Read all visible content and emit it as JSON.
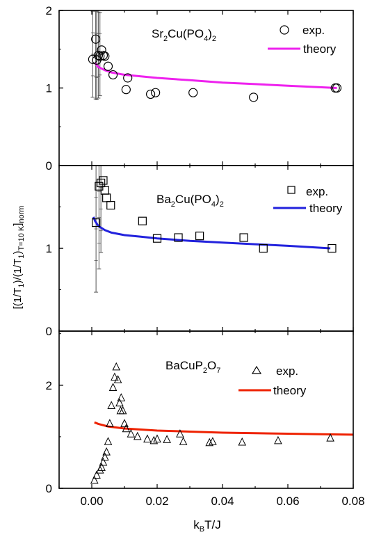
{
  "chart_data": [
    {
      "type": "scatter",
      "title_parts": [
        "Sr",
        "2",
        "Cu(PO",
        "4",
        ")",
        "2"
      ],
      "xlim": [
        -0.01,
        0.08
      ],
      "ylim": [
        0,
        2
      ],
      "y_ticks": [
        "0",
        "1",
        "2"
      ],
      "series": [
        {
          "name": "exp.",
          "marker": "circle",
          "x": [
            0.0003,
            0.0012,
            0.0015,
            0.002,
            0.0025,
            0.003,
            0.0035,
            0.004,
            0.005,
            0.0065,
            0.0105,
            0.011,
            0.018,
            0.0195,
            0.031,
            0.0495,
            0.0745,
            0.075
          ],
          "y": [
            1.37,
            1.63,
            1.36,
            1.42,
            1.41,
            1.49,
            1.42,
            1.41,
            1.28,
            1.17,
            0.98,
            1.13,
            0.92,
            0.94,
            0.94,
            0.88,
            1.0,
            1.0
          ]
        },
        {
          "name": "theory",
          "color": "#ee22ee",
          "x": [
            0.001,
            0.002,
            0.004,
            0.006,
            0.01,
            0.015,
            0.02,
            0.03,
            0.04,
            0.05,
            0.06,
            0.075
          ],
          "y": [
            1.32,
            1.27,
            1.23,
            1.2,
            1.17,
            1.15,
            1.13,
            1.1,
            1.07,
            1.05,
            1.03,
            1.0
          ]
        }
      ],
      "error_bars": {
        "x": [
          0.0003,
          0.0012,
          0.0015,
          0.002,
          0.0025
        ],
        "low": [
          0.88,
          0.86,
          0.85,
          0.87,
          0.9
        ],
        "high": [
          1.99,
          1.99,
          1.99,
          1.98,
          1.97
        ]
      }
    },
    {
      "type": "scatter",
      "title_parts": [
        "Ba",
        "2",
        "Cu(PO",
        "4",
        ")",
        "2"
      ],
      "xlim": [
        -0.01,
        0.08
      ],
      "ylim": [
        0,
        2
      ],
      "y_ticks": [
        "0",
        "1"
      ],
      "series": [
        {
          "name": "exp.",
          "marker": "square",
          "x": [
            0.0013,
            0.0022,
            0.0028,
            0.0035,
            0.004,
            0.0045,
            0.0058,
            0.0155,
            0.02,
            0.0265,
            0.033,
            0.0465,
            0.0525,
            0.0735
          ],
          "y": [
            1.31,
            1.75,
            1.79,
            1.82,
            1.7,
            1.61,
            1.52,
            1.33,
            1.12,
            1.13,
            1.15,
            1.13,
            1.0,
            1.0
          ]
        },
        {
          "name": "theory",
          "color": "#2222dd",
          "x": [
            0.0005,
            0.001,
            0.002,
            0.004,
            0.006,
            0.01,
            0.015,
            0.02,
            0.03,
            0.04,
            0.05,
            0.06,
            0.073
          ],
          "y": [
            1.38,
            1.33,
            1.27,
            1.22,
            1.19,
            1.16,
            1.14,
            1.12,
            1.09,
            1.07,
            1.05,
            1.03,
            1.0
          ]
        }
      ],
      "error_bars": {
        "x": [
          0.0013,
          0.0022,
          0.0028
        ],
        "low": [
          0.47,
          0.75,
          0.95
        ],
        "high": [
          2.0,
          2.0,
          2.0
        ]
      }
    },
    {
      "type": "scatter",
      "title_parts": [
        "BaCuP",
        "2",
        "O",
        "7"
      ],
      "xlim": [
        -0.01,
        0.08
      ],
      "ylim": [
        0,
        3.05
      ],
      "y_ticks": [
        "0",
        "2"
      ],
      "x_ticks": [
        "0.00",
        "0.02",
        "0.04",
        "0.06",
        "0.08"
      ],
      "xlabel_parts": [
        "k",
        "B",
        "T/J"
      ],
      "series": [
        {
          "name": "exp.",
          "marker": "triangle",
          "x": [
            0.0008,
            0.0015,
            0.0025,
            0.003,
            0.0035,
            0.004,
            0.0045,
            0.005,
            0.0055,
            0.006,
            0.0065,
            0.007,
            0.0075,
            0.008,
            0.0085,
            0.0088,
            0.009,
            0.0095,
            0.01,
            0.0105,
            0.012,
            0.014,
            0.017,
            0.019,
            0.02,
            0.023,
            0.027,
            0.028,
            0.036,
            0.037,
            0.046,
            0.057,
            0.073
          ],
          "y": [
            0.15,
            0.25,
            0.35,
            0.4,
            0.5,
            0.6,
            0.7,
            0.9,
            1.25,
            1.6,
            1.95,
            2.15,
            2.35,
            2.1,
            1.65,
            1.5,
            1.75,
            1.5,
            1.25,
            1.15,
            1.05,
            1.0,
            0.95,
            0.92,
            0.95,
            0.94,
            1.05,
            0.9,
            0.88,
            0.9,
            0.89,
            0.92,
            0.97
          ]
        },
        {
          "name": "theory",
          "color": "#ee2200",
          "x": [
            0.0008,
            0.002,
            0.005,
            0.01,
            0.02,
            0.03,
            0.04,
            0.05,
            0.06,
            0.07,
            0.08
          ],
          "y": [
            1.28,
            1.25,
            1.2,
            1.16,
            1.12,
            1.1,
            1.08,
            1.07,
            1.06,
            1.05,
            1.04
          ]
        }
      ]
    }
  ],
  "ylabel_parts": [
    "[(1/T",
    "1",
    ")/(1/T",
    "1",
    ")",
    "T=10 K",
    "]",
    "norm"
  ]
}
